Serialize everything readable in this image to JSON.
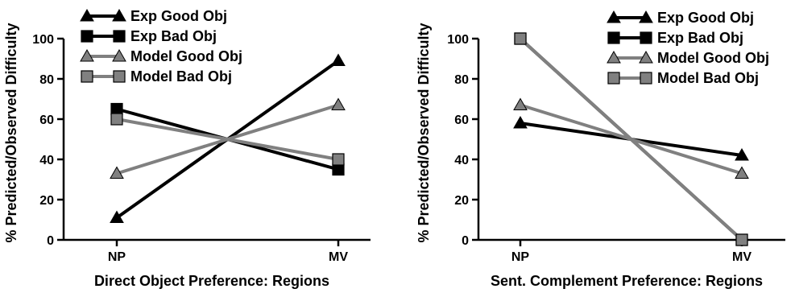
{
  "chart_data": [
    {
      "type": "line",
      "categories": [
        "NP",
        "MV"
      ],
      "xlabel": "Direct Object Preference: Regions",
      "ylabel": "% Predicted/Observed Difficulty",
      "ylim": [
        0,
        100
      ],
      "yticks": [
        0,
        20,
        40,
        60,
        80,
        100
      ],
      "grid": false,
      "legend_position": "top-left",
      "series": [
        {
          "name": "Exp Good Obj",
          "values": [
            11,
            89
          ],
          "marker": "triangle",
          "color": "#000000"
        },
        {
          "name": "Exp Bad Obj",
          "values": [
            65,
            35
          ],
          "marker": "square",
          "color": "#000000"
        },
        {
          "name": "Model Good Obj",
          "values": [
            33,
            67
          ],
          "marker": "triangle",
          "color": "#808080"
        },
        {
          "name": "Model Bad Obj",
          "values": [
            60,
            40
          ],
          "marker": "square",
          "color": "#808080"
        }
      ]
    },
    {
      "type": "line",
      "categories": [
        "NP",
        "MV"
      ],
      "xlabel": "Sent. Complement Preference: Regions",
      "ylabel": "% Predicted/Observed Difficulty",
      "ylim": [
        0,
        100
      ],
      "yticks": [
        0,
        20,
        40,
        60,
        80,
        100
      ],
      "grid": false,
      "legend_position": "top-right",
      "series": [
        {
          "name": "Exp Good Obj",
          "values": [
            58,
            42
          ],
          "marker": "triangle",
          "color": "#000000"
        },
        {
          "name": "Exp Bad Obj",
          "values": [
            100,
            0
          ],
          "marker": "square",
          "color": "#000000"
        },
        {
          "name": "Model Good Obj",
          "values": [
            67,
            33
          ],
          "marker": "triangle",
          "color": "#808080"
        },
        {
          "name": "Model Bad Obj",
          "values": [
            100,
            0
          ],
          "marker": "square",
          "color": "#808080"
        }
      ]
    }
  ]
}
